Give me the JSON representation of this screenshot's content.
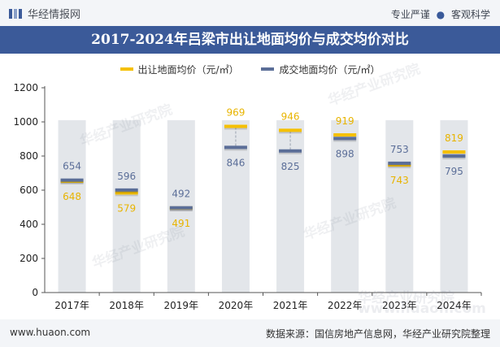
{
  "header": {
    "brand": "华经情报网",
    "tagline_left": "专业严谨",
    "tagline_sep": "●",
    "tagline_right": "客观科学"
  },
  "watermarks": [
    "华经产业研究院",
    "www.huaon.com"
  ],
  "footer": {
    "site": "www.huaon.com",
    "source": "数据来源：国信房地产信息网，华经产业研究院整理"
  },
  "colors": {
    "series1": "#f5c000",
    "series2": "#5b6e98",
    "bg_bar": "#e3e6ea",
    "title_bg": "#3b5a99"
  },
  "chart_data": {
    "type": "line",
    "title": "2017-2024年吕梁市出让地面均价与成交均价对比",
    "categories": [
      "2017年",
      "2018年",
      "2019年",
      "2020年",
      "2021年",
      "2022年",
      "2023年",
      "2024年"
    ],
    "series": [
      {
        "name": "出让地面均价（元/㎡）",
        "values": [
          648,
          579,
          491,
          969,
          946,
          919,
          743,
          819
        ]
      },
      {
        "name": "成交地面均价（元/㎡）",
        "values": [
          654,
          596,
          492,
          846,
          825,
          898,
          753,
          795
        ]
      }
    ],
    "background_bar_value": 1010,
    "ylim": [
      0,
      1200
    ],
    "yticks": [
      0,
      200,
      400,
      600,
      800,
      1000,
      1200
    ],
    "xlabel": "",
    "ylabel": ""
  }
}
